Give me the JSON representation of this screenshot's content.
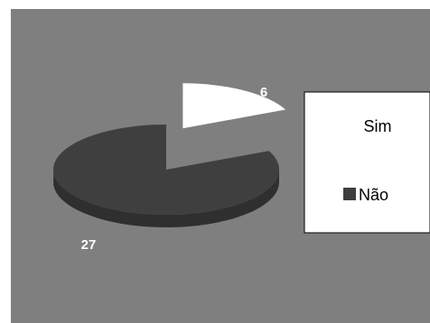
{
  "chart_data": {
    "type": "pie",
    "three_d": true,
    "exploded_slice": "Sim",
    "categories": [
      "Sim",
      "Não"
    ],
    "values": [
      6,
      27
    ],
    "data_labels": [
      "6",
      "27"
    ],
    "colors": {
      "Sim": "#ffffff",
      "Não": "#3f3f3f",
      "plot_background": "#7f7f7f",
      "legend_background": "#ffffff"
    },
    "legend": {
      "placement": "right",
      "entries": [
        {
          "label": "Sim",
          "color": "#ffffff"
        },
        {
          "label": "Não",
          "color": "#3f3f3f"
        }
      ]
    }
  }
}
